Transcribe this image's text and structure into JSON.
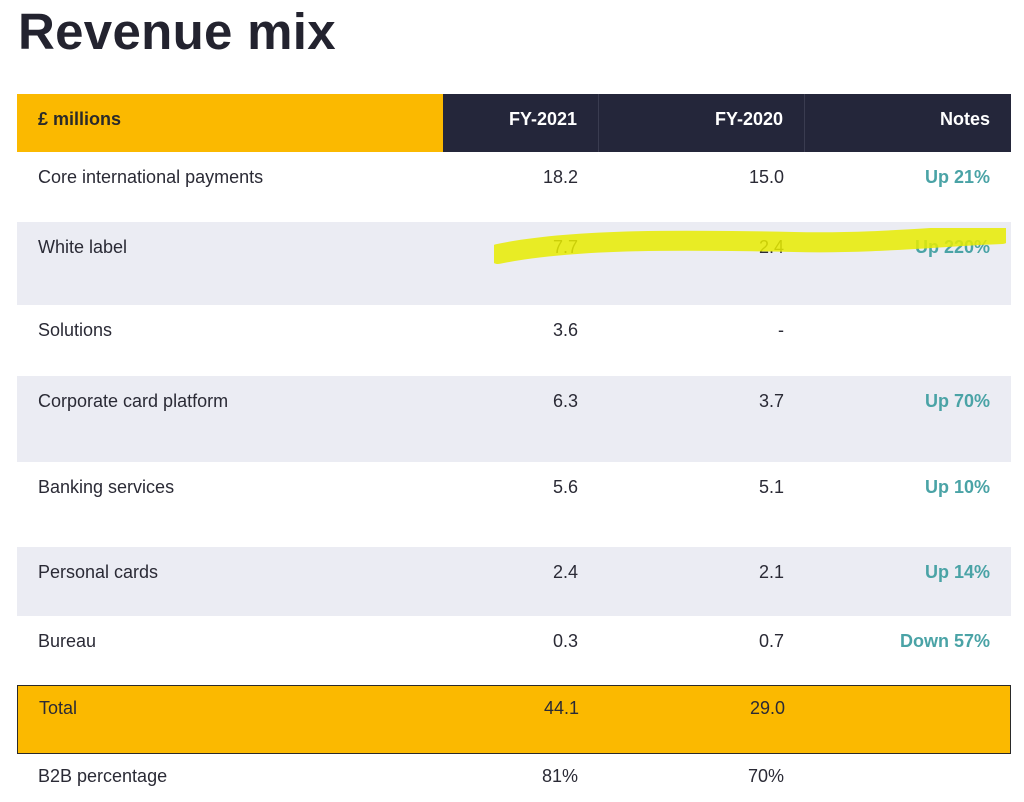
{
  "title": "Revenue mix",
  "colors": {
    "accent_yellow": "#fbb900",
    "header_dark": "#24263a",
    "note_teal": "#4aa3a6",
    "row_shade": "#ebecf3",
    "highlighter": "#e8ec00"
  },
  "table": {
    "headers": [
      "£ millions",
      "FY-2021",
      "FY-2020",
      "Notes"
    ],
    "rows": [
      {
        "label": "Core international payments",
        "fy2021": "18.2",
        "fy2020": "15.0",
        "note": "Up 21%"
      },
      {
        "label": "White label",
        "fy2021": "7.7",
        "fy2020": "2.4",
        "note": "Up 220%"
      },
      {
        "label": "Solutions",
        "fy2021": "3.6",
        "fy2020": "-",
        "note": ""
      },
      {
        "label": "Corporate card platform",
        "fy2021": "6.3",
        "fy2020": "3.7",
        "note": "Up 70%"
      },
      {
        "label": "Banking services",
        "fy2021": "5.6",
        "fy2020": "5.1",
        "note": "Up 10%"
      },
      {
        "label": "Personal cards",
        "fy2021": "2.4",
        "fy2020": "2.1",
        "note": "Up 14%"
      },
      {
        "label": "Bureau",
        "fy2021": "0.3",
        "fy2020": "0.7",
        "note": "Down 57%"
      }
    ],
    "total": {
      "label": "Total",
      "fy2021": "44.1",
      "fy2020": "29.0",
      "note": ""
    },
    "b2b": {
      "label": "B2B percentage",
      "fy2021": "81%",
      "fy2020": "70%",
      "note": ""
    }
  }
}
